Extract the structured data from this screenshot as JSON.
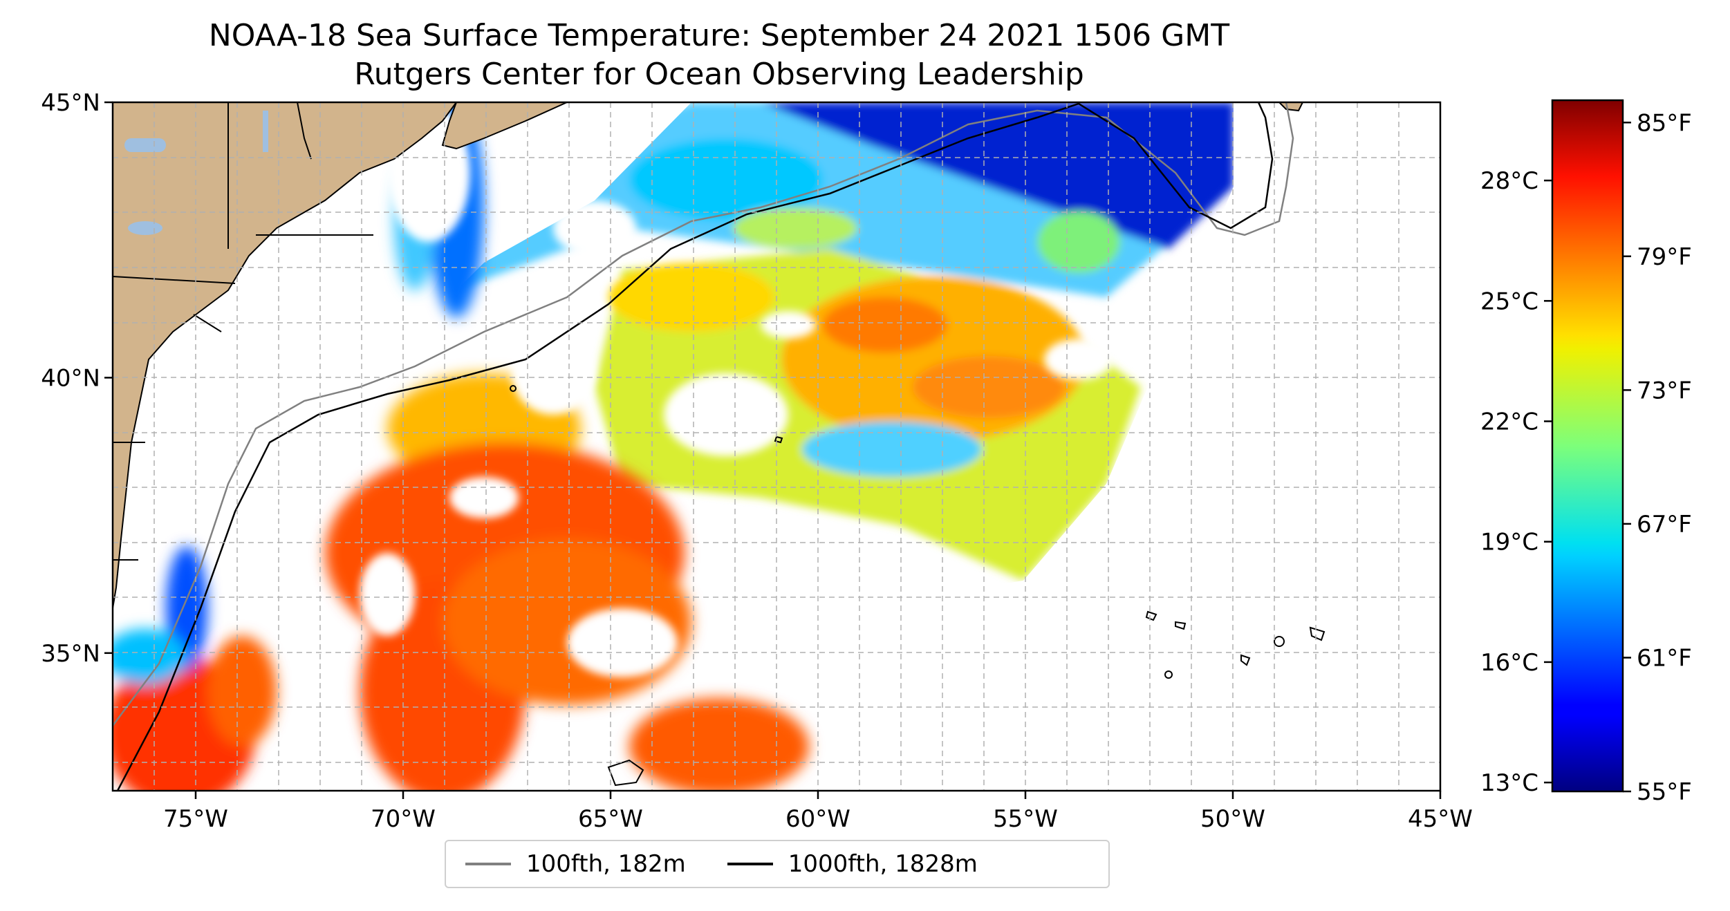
{
  "title": {
    "line1": "NOAA-18 Sea Surface Temperature: September 24 2021 1506 GMT",
    "line2": "Rutgers Center for Ocean Observing Leadership"
  },
  "map": {
    "lon_range": [
      -77,
      -45
    ],
    "lat_range": [
      32.5,
      45
    ],
    "x_ticks": [
      {
        "lon": -75,
        "label": "75°W"
      },
      {
        "lon": -70,
        "label": "70°W"
      },
      {
        "lon": -65,
        "label": "65°W"
      },
      {
        "lon": -60,
        "label": "60°W"
      },
      {
        "lon": -55,
        "label": "55°W"
      },
      {
        "lon": -50,
        "label": "50°W"
      },
      {
        "lon": -45,
        "label": "45°W"
      }
    ],
    "y_ticks": [
      {
        "lat": 45,
        "label": "45°N"
      },
      {
        "lat": 40,
        "label": "40°N"
      },
      {
        "lat": 35,
        "label": "35°N"
      }
    ],
    "gridlines": "dashed",
    "colors": {
      "land": "#d2b48c",
      "lakes": "#9fbfe0",
      "grid": "#b0b0b0"
    }
  },
  "colorbar": {
    "colormap": "jet",
    "celsius_ticks": [
      {
        "value": 28,
        "label": "28°C"
      },
      {
        "value": 25,
        "label": "25°C"
      },
      {
        "value": 22,
        "label": "22°C"
      },
      {
        "value": 19,
        "label": "19°C"
      },
      {
        "value": 16,
        "label": "16°C"
      },
      {
        "value": 13,
        "label": "13°C"
      }
    ],
    "fahrenheit_ticks": [
      {
        "value": 85,
        "label": "85°F"
      },
      {
        "value": 79,
        "label": "79°F"
      },
      {
        "value": 73,
        "label": "73°F"
      },
      {
        "value": 67,
        "label": "67°F"
      },
      {
        "value": 61,
        "label": "61°F"
      },
      {
        "value": 55,
        "label": "55°F"
      }
    ],
    "range_f": [
      55,
      86
    ]
  },
  "legend": {
    "items": [
      {
        "label": "100fth, 182m",
        "color": "#808080"
      },
      {
        "label": "1000fth, 1828m",
        "color": "#000000"
      }
    ]
  }
}
